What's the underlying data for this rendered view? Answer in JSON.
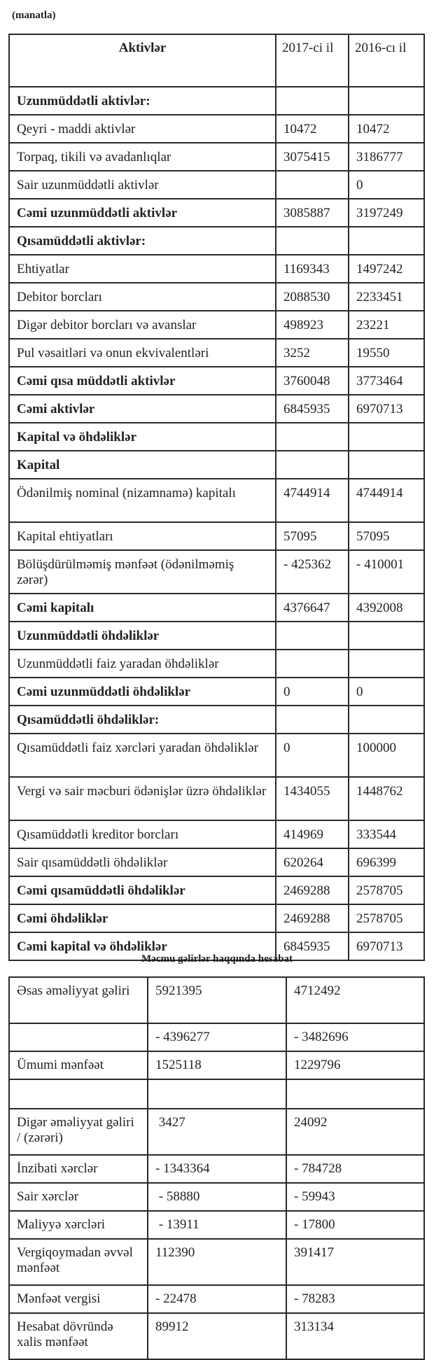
{
  "unit_label": "(manatla)",
  "balance": {
    "headers": [
      "Aktivlər",
      "2017-ci il",
      "2016-cı il"
    ],
    "rows": [
      {
        "label": "Uzunmüddətli aktivlər:",
        "v2017": "",
        "v2016": "",
        "bold": true
      },
      {
        "label": "Qeyri - maddi aktivlər",
        "v2017": "10472",
        "v2016": "10472"
      },
      {
        "label": "Torpaq, tikili və avadanlıqlar",
        "v2017": "3075415",
        "v2016": "3186777"
      },
      {
        "label": "Sair uzunmüddətli aktivlər",
        "v2017": "",
        "v2016": "0"
      },
      {
        "label": "Cəmi uzunmüddətli aktivlər",
        "v2017": "3085887",
        "v2016": "3197249",
        "bold": true
      },
      {
        "label": "Qısamüddətli aktivlər:",
        "v2017": "",
        "v2016": "",
        "bold": true
      },
      {
        "label": "Ehtiyatlar",
        "v2017": "1169343",
        "v2016": "1497242"
      },
      {
        "label": "Debitor borcları",
        "v2017": "2088530",
        "v2016": "2233451"
      },
      {
        "label": "Digər debitor borcları və avanslar",
        "v2017": "498923",
        "v2016": "23221"
      },
      {
        "label": "Pul vəsaitləri və onun ekvivalentləri",
        "v2017": "3252",
        "v2016": "19550"
      },
      {
        "label": "Cəmi qısa müddətli aktivlər",
        "v2017": "3760048",
        "v2016": "3773464",
        "bold": true
      },
      {
        "label": "Cəmi aktivlər",
        "v2017": "6845935",
        "v2016": "6970713",
        "bold": true
      },
      {
        "label": "Kapital və öhdəliklər",
        "v2017": "",
        "v2016": "",
        "bold": true
      },
      {
        "label": "Kapital",
        "v2017": "",
        "v2016": "",
        "bold": true
      },
      {
        "label": "Ödənilmiş nominal (nizamnamə) kapitalı",
        "v2017": "4744914",
        "v2016": "4744914",
        "double": true
      },
      {
        "label": "Kapital ehtiyatları",
        "v2017": "57095",
        "v2016": "57095"
      },
      {
        "label": "Bölüşdürülməmiş mənfəət (ödənilməmiş zərər)",
        "v2017": "- 425362",
        "v2016": "- 410001",
        "double": true
      },
      {
        "label": "Cəmi kapitalı",
        "v2017": "4376647",
        "v2016": "4392008",
        "bold": true
      },
      {
        "label": "Uzunmüddətli öhdəliklər",
        "v2017": "",
        "v2016": "",
        "bold": true
      },
      {
        "label": "Uzunmüddətli faiz yaradan öhdəliklər",
        "v2017": "",
        "v2016": ""
      },
      {
        "label": "Cəmi uzunmüddətli öhdəliklər",
        "v2017": "0",
        "v2016": "0",
        "bold": true
      },
      {
        "label": "Qısamüddətli öhdəliklər:",
        "v2017": "",
        "v2016": "",
        "bold": true
      },
      {
        "label": "Qısamüddətli faiz xərcləri yaradan öhdəliklər",
        "v2017": "0",
        "v2016": "100000",
        "double": true
      },
      {
        "label": "Vergi və sair məcburi ödənişlər üzrə öhdəliklər",
        "v2017": "1434055",
        "v2016": "1448762",
        "double": true
      },
      {
        "label": "Qısamüddətli kreditor borcları",
        "v2017": "414969",
        "v2016": "333544"
      },
      {
        "label": "Sair qısamüddətli öhdəliklər",
        "v2017": "620264",
        "v2016": "696399"
      },
      {
        "label": "Cəmi qısamüddətli öhdəliklər",
        "v2017": "2469288",
        "v2016": "2578705",
        "bold": true
      },
      {
        "label": "Cəmi öhdəliklər",
        "v2017": "2469288",
        "v2016": "2578705",
        "bold": true
      },
      {
        "label": "Cəmi kapital və öhdəliklər",
        "v2017": "6845935",
        "v2016": "6970713",
        "bold": true
      }
    ]
  },
  "income": {
    "title": "Məcmu gəlirlər haqqında hesabat",
    "rows": [
      {
        "label": "Əsas əməliyyat gəliri",
        "v2017": "5921395",
        "v2016": "4712492",
        "double": true
      },
      {
        "label": "",
        "v2017": "- 4396277",
        "v2016": "- 3482696"
      },
      {
        "label": "Ümumi mənfəət",
        "v2017": "1525118",
        "v2016": "1229796"
      },
      {
        "label": "",
        "v2017": "",
        "v2016": "",
        "empty": true
      },
      {
        "label": "Digər əməliyyat gəliri / (zərəri)",
        "v2017": " 3427",
        "v2016": "24092",
        "double": true
      },
      {
        "label": "İnzibati xərclər",
        "v2017": "- 1343364",
        "v2016": "- 784728"
      },
      {
        "label": "Sair xərclər",
        "v2017": " - 58880",
        "v2016": "- 59943"
      },
      {
        "label": "Maliyyə xərcləri",
        "v2017": " - 13911",
        "v2016": "- 17800"
      },
      {
        "label": "Vergiqoymadan əvvəl mənfəət",
        "v2017": "112390",
        "v2016": "391417",
        "double": true
      },
      {
        "label": "Mənfəət vergisi",
        "v2017": "- 22478",
        "v2016": "- 78283"
      },
      {
        "label": "Hesabat dövründə xalis mənfəət",
        "v2017": "89912",
        "v2016": "313134",
        "double": true
      }
    ]
  }
}
